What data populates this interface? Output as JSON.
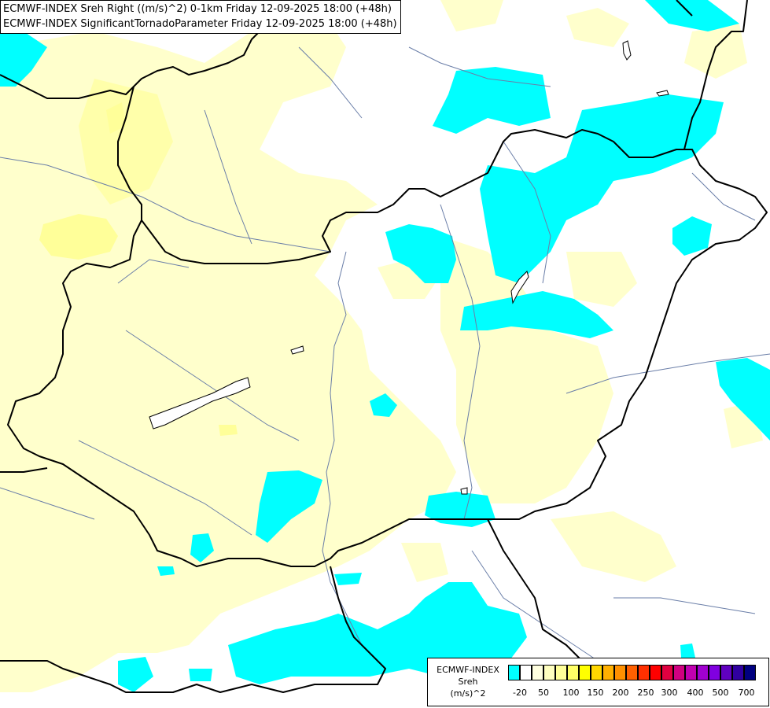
{
  "header": {
    "line1": "ECMWF-INDEX Sreh Right ((m/s)^2) 0-1km Friday 12-09-2025 18:00 (+48h)",
    "line2": "ECMWF-INDEX SignificantTornadoParameter Friday 12-09-2025 18:00 (+48h)"
  },
  "legend": {
    "title": [
      "ECMWF-INDEX",
      "Sreh",
      "(m/s)^2"
    ],
    "colors": [
      "#00ffff",
      "#ffffff",
      "#ffffe0",
      "#ffffc0",
      "#ffff99",
      "#ffff66",
      "#ffff00",
      "#ffd700",
      "#ffb000",
      "#ff9000",
      "#ff6000",
      "#ff3000",
      "#ff0000",
      "#e00040",
      "#d00080",
      "#c000b0",
      "#a000d0",
      "#8000e0",
      "#6000c0",
      "#3000a0",
      "#000080"
    ],
    "ticks": [
      "-20",
      "50",
      "100",
      "150",
      "200",
      "250",
      "300",
      "400",
      "500",
      "700"
    ]
  },
  "colors": {
    "low_shading": "#00ffff",
    "light_shading": "#ffffcc",
    "medium_shading": "#ffff99",
    "border": "#000000",
    "river": "#6a7ea8"
  }
}
